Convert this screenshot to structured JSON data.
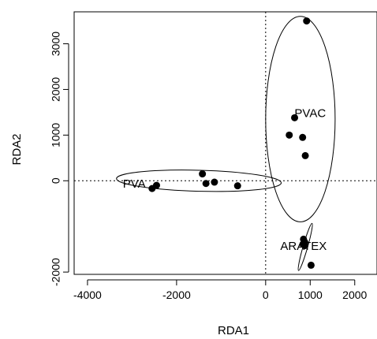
{
  "chart_data": {
    "type": "scatter",
    "title": "",
    "xlabel": "RDA1",
    "ylabel": "RDA2",
    "xlim": [
      -4300,
      2500
    ],
    "ylim": [
      -2050,
      3700
    ],
    "x_ticks": [
      -4000,
      -2000,
      0,
      1000,
      2000
    ],
    "x_tick_labels": [
      "-4000",
      "-2000",
      "0",
      "1000",
      "2000"
    ],
    "y_ticks": [
      -2000,
      0,
      1000,
      2000,
      3000
    ],
    "y_tick_labels": [
      "-2000",
      "0",
      "1000",
      "2000",
      "3000"
    ],
    "grid": false,
    "reference_lines": {
      "x": 0,
      "y": 0,
      "style": "dotted"
    },
    "groups": [
      {
        "label": "PVA",
        "label_at": [
          -2950,
          -80
        ],
        "points": [
          [
            -2550,
            -170
          ],
          [
            -2450,
            -100
          ],
          [
            -1420,
            150
          ],
          [
            -1340,
            -60
          ],
          [
            -1150,
            -30
          ],
          [
            -630,
            -110
          ]
        ],
        "ellipse": {
          "cx": -1500,
          "cy": 0,
          "rx": 1850,
          "ry": 230,
          "angle_deg": 1.5
        }
      },
      {
        "label": "PVAC",
        "label_at": [
          1000,
          1460
        ],
        "points": [
          [
            920,
            3500
          ],
          [
            650,
            1380
          ],
          [
            530,
            1000
          ],
          [
            830,
            950
          ],
          [
            890,
            550
          ]
        ],
        "ellipse": {
          "cx": 780,
          "cy": 1350,
          "rx": 780,
          "ry": 2250,
          "angle_deg": 0
        }
      },
      {
        "label": "ARATEX",
        "label_at": [
          850,
          -1450
        ],
        "points": [
          [
            850,
            -1280
          ],
          [
            880,
            -1350
          ],
          [
            840,
            -1390
          ],
          [
            880,
            -1420
          ],
          [
            1020,
            -1850
          ]
        ],
        "ellipse": {
          "cx": 890,
          "cy": -1450,
          "rx": 550,
          "ry": 50,
          "angle_deg": -74
        }
      }
    ]
  }
}
